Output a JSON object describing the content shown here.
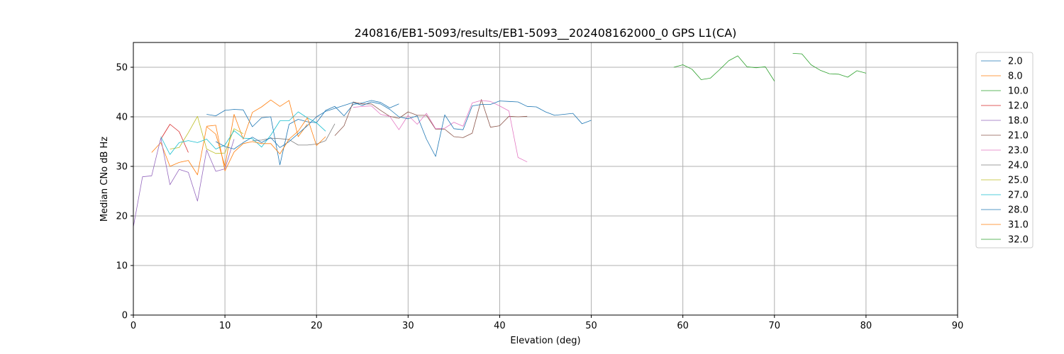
{
  "chart_data": {
    "type": "line",
    "title": "240816/EB1-5093/results/EB1-5093__202408162000_0 GPS L1(CA)",
    "xlabel": "Elevation (deg)",
    "ylabel": "Median CNo dB Hz",
    "xlim": [
      0,
      90
    ],
    "ylim": [
      0,
      55
    ],
    "xticks": [
      "0",
      "10",
      "20",
      "30",
      "40",
      "50",
      "60",
      "70",
      "80",
      "90"
    ],
    "yticks": [
      "0",
      "10",
      "20",
      "30",
      "40",
      "50"
    ],
    "grid": true,
    "legend_position": "right",
    "series": [
      {
        "name": "2.0",
        "color": "#1f77b4",
        "points": [
          [
            8,
            40.5
          ],
          [
            9,
            40.2
          ],
          [
            10,
            41.3
          ],
          [
            11,
            41.5
          ],
          [
            12,
            41.4
          ],
          [
            13,
            38
          ],
          [
            14,
            39.8
          ],
          [
            15,
            40
          ],
          [
            16,
            30.3
          ],
          [
            17,
            38.5
          ],
          [
            18,
            39.5
          ],
          [
            19,
            39
          ],
          [
            20,
            38.8
          ],
          [
            21,
            41.3
          ],
          [
            22,
            42.1
          ],
          [
            23,
            40.2
          ],
          [
            24,
            42.5
          ],
          [
            25,
            42.8
          ],
          [
            26,
            43.3
          ],
          [
            27,
            42.9
          ],
          [
            28,
            41.8
          ],
          [
            29,
            42.6
          ]
        ]
      },
      {
        "name": "8.0",
        "color": "#ff7f0e",
        "points": [
          [
            2,
            32.8
          ],
          [
            3,
            34.8
          ],
          [
            4,
            30
          ],
          [
            5,
            30.8
          ],
          [
            6,
            31.2
          ],
          [
            7,
            28.3
          ],
          [
            8,
            38
          ],
          [
            9,
            36.5
          ],
          [
            10,
            30
          ],
          [
            11,
            40.5
          ],
          [
            12,
            35.5
          ],
          [
            13,
            40.9
          ],
          [
            14,
            42
          ],
          [
            15,
            43.4
          ],
          [
            16,
            42.1
          ],
          [
            17,
            43.3
          ],
          [
            18,
            36
          ],
          [
            19,
            38.5
          ]
        ]
      },
      {
        "name": "10.0",
        "color": "#2ca02c",
        "points": [
          [
            59,
            50
          ],
          [
            60,
            50.5
          ],
          [
            61,
            49.6
          ],
          [
            62,
            47.5
          ],
          [
            63,
            47.8
          ],
          [
            64,
            49.5
          ],
          [
            65,
            51.3
          ],
          [
            66,
            52.3
          ],
          [
            67,
            50.1
          ],
          [
            68,
            49.9
          ],
          [
            69,
            50.1
          ],
          [
            70,
            47.2
          ]
        ]
      },
      {
        "name": "12.0",
        "color": "#d62728",
        "points": [
          [
            3,
            35.5
          ],
          [
            4,
            38.5
          ],
          [
            5,
            37
          ],
          [
            6,
            32.8
          ]
        ]
      },
      {
        "name": "18.0",
        "color": "#9467bd",
        "points": [
          [
            0,
            17.8
          ],
          [
            1,
            27.9
          ],
          [
            2,
            28.1
          ],
          [
            3,
            35.7
          ],
          [
            4,
            26.3
          ],
          [
            5,
            29.4
          ],
          [
            6,
            28.8
          ],
          [
            7,
            23
          ],
          [
            8,
            33.3
          ],
          [
            9,
            29
          ],
          [
            10,
            29.5
          ],
          [
            11,
            35.5
          ]
        ]
      },
      {
        "name": "21.0",
        "color": "#8c564b",
        "points": [
          [
            22,
            36.2
          ],
          [
            23,
            38.2
          ],
          [
            24,
            43
          ],
          [
            25,
            42.6
          ],
          [
            26,
            42.6
          ],
          [
            27,
            41.3
          ],
          [
            28,
            40.1
          ],
          [
            29,
            39.7
          ],
          [
            30,
            41
          ],
          [
            31,
            40.3
          ],
          [
            32,
            40.3
          ],
          [
            33,
            37.5
          ],
          [
            34,
            37.5
          ],
          [
            35,
            36
          ],
          [
            36,
            35.8
          ],
          [
            37,
            36.7
          ],
          [
            38,
            43.5
          ],
          [
            39,
            37.9
          ],
          [
            40,
            38.2
          ],
          [
            41,
            40.1
          ],
          [
            42,
            40
          ],
          [
            43,
            40.1
          ]
        ]
      },
      {
        "name": "23.0",
        "color": "#e377c2",
        "points": [
          [
            24,
            41.9
          ],
          [
            25,
            42.1
          ],
          [
            26,
            42.2
          ],
          [
            27,
            40.5
          ],
          [
            28,
            40.1
          ],
          [
            29,
            37.4
          ],
          [
            30,
            40.3
          ],
          [
            31,
            38.5
          ],
          [
            32,
            40.7
          ],
          [
            33,
            37.6
          ],
          [
            34,
            37.7
          ],
          [
            35,
            38.9
          ],
          [
            36,
            38.1
          ],
          [
            37,
            42.8
          ],
          [
            38,
            43.3
          ],
          [
            39,
            43.1
          ],
          [
            40,
            42.2
          ],
          [
            41,
            41.2
          ],
          [
            42,
            31.8
          ],
          [
            43,
            30.9
          ]
        ]
      },
      {
        "name": "24.0",
        "color": "#7f7f7f",
        "points": [
          [
            13,
            35.2
          ],
          [
            14,
            35.3
          ],
          [
            15,
            35.7
          ],
          [
            16,
            35.6
          ],
          [
            17,
            35.4
          ],
          [
            18,
            34.3
          ],
          [
            19,
            34.3
          ],
          [
            20,
            34.5
          ],
          [
            21,
            35.2
          ],
          [
            22,
            38.6
          ]
        ]
      },
      {
        "name": "25.0",
        "color": "#bcbd22",
        "points": [
          [
            4,
            33.5
          ],
          [
            5,
            33.8
          ],
          [
            6,
            36.8
          ],
          [
            7,
            40.1
          ],
          [
            8,
            33.5
          ],
          [
            9,
            32.6
          ],
          [
            10,
            32.7
          ],
          [
            11,
            37.6
          ],
          [
            12,
            36.6
          ]
        ]
      },
      {
        "name": "27.0",
        "color": "#17becf",
        "points": [
          [
            3,
            36
          ],
          [
            4,
            32.4
          ],
          [
            5,
            34.8
          ],
          [
            6,
            35.2
          ],
          [
            7,
            34.8
          ],
          [
            8,
            35.5
          ],
          [
            9,
            33.5
          ],
          [
            10,
            34.3
          ],
          [
            11,
            37.2
          ],
          [
            12,
            35.7
          ],
          [
            13,
            35.6
          ],
          [
            14,
            33.9
          ],
          [
            15,
            36.3
          ],
          [
            16,
            39.2
          ],
          [
            17,
            39.2
          ],
          [
            18,
            41
          ],
          [
            19,
            39.8
          ],
          [
            20,
            38.8
          ],
          [
            21,
            37.1
          ]
        ]
      },
      {
        "name": "28.0",
        "color": "#1f77b4",
        "points": [
          [
            9,
            35
          ],
          [
            10,
            34
          ],
          [
            11,
            33.5
          ],
          [
            12,
            34.8
          ],
          [
            13,
            35.9
          ],
          [
            14,
            34.8
          ],
          [
            15,
            35.8
          ],
          [
            16,
            33.8
          ],
          [
            17,
            35
          ],
          [
            18,
            36.6
          ],
          [
            19,
            38.2
          ],
          [
            20,
            40
          ],
          [
            21,
            41.1
          ],
          [
            24,
            42.9
          ],
          [
            25,
            42.3
          ],
          [
            26,
            43
          ],
          [
            27,
            42.6
          ],
          [
            28,
            41.5
          ],
          [
            29,
            40
          ],
          [
            30,
            39.6
          ],
          [
            31,
            40.2
          ],
          [
            32,
            35.5
          ],
          [
            33,
            32
          ],
          [
            34,
            40.4
          ],
          [
            35,
            37.6
          ],
          [
            36,
            37.4
          ],
          [
            37,
            42.2
          ],
          [
            38,
            42.5
          ],
          [
            39,
            42.5
          ],
          [
            40,
            43.2
          ],
          [
            41,
            43.1
          ],
          [
            42,
            43
          ],
          [
            43,
            42.1
          ],
          [
            44,
            42
          ],
          [
            45,
            41
          ],
          [
            46,
            40.3
          ],
          [
            47,
            40.5
          ],
          [
            48,
            40.7
          ],
          [
            49,
            38.6
          ],
          [
            50,
            39.3
          ]
        ]
      },
      {
        "name": "31.0",
        "color": "#ff7f0e",
        "points": [
          [
            8,
            38.1
          ],
          [
            9,
            38.3
          ],
          [
            10,
            29.1
          ],
          [
            11,
            32.9
          ],
          [
            12,
            34.6
          ],
          [
            13,
            35
          ],
          [
            14,
            34.6
          ],
          [
            15,
            34.6
          ],
          [
            16,
            32.5
          ],
          [
            17,
            35.5
          ],
          [
            18,
            37.1
          ],
          [
            19,
            39.8
          ],
          [
            20,
            34.2
          ],
          [
            21,
            36
          ]
        ]
      },
      {
        "name": "32.0",
        "color": "#2ca02c",
        "points": [
          [
            72,
            52.8
          ],
          [
            73,
            52.7
          ],
          [
            74,
            50.5
          ],
          [
            75,
            49.4
          ],
          [
            76,
            48.7
          ],
          [
            77,
            48.6
          ],
          [
            78,
            48
          ],
          [
            79,
            49.3
          ],
          [
            80,
            48.8
          ]
        ]
      }
    ]
  }
}
